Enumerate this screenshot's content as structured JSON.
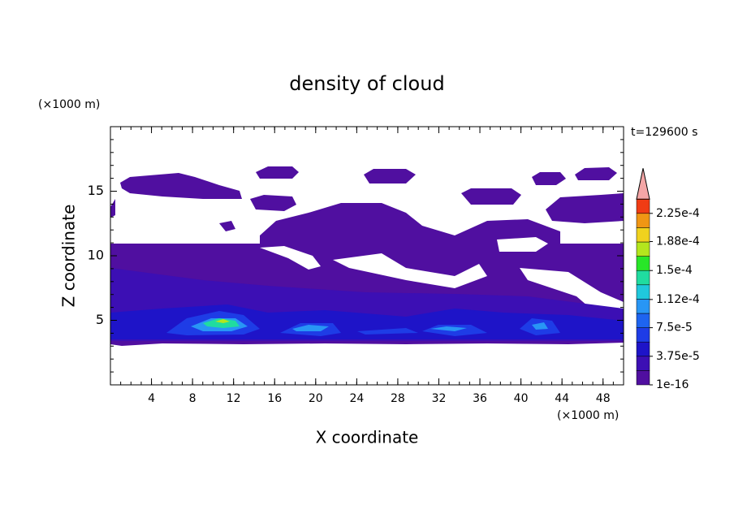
{
  "chart_data": {
    "type": "contour",
    "title": "density of cloud",
    "x_label": "X coordinate",
    "y_label": "Z coordinate",
    "x_unit": "(×1000 m)",
    "y_unit": "(×1000 m)",
    "time_label": "t=129600 s",
    "xlim": [
      0,
      50
    ],
    "ylim": [
      0,
      20
    ],
    "xticks": [
      4,
      8,
      12,
      16,
      20,
      24,
      28,
      32,
      36,
      40,
      44,
      48
    ],
    "yticks": [
      5,
      10,
      15
    ],
    "colorbar": {
      "levels": [
        1e-16,
        1.875e-05,
        3.75e-05,
        5.625e-05,
        7.5e-05,
        9.375e-05,
        0.0001125,
        0.00013125,
        0.00015,
        0.00016875,
        0.0001875,
        0.00020625,
        0.000225
      ],
      "colors": [
        "#500fa0",
        "#3c0fb4",
        "#1e14c8",
        "#1e3ce6",
        "#1e64f0",
        "#2896f5",
        "#20c8dc",
        "#20dca0",
        "#28e628",
        "#b4e61e",
        "#f0d21e",
        "#f09614",
        "#f03c14"
      ],
      "extend_color": "#f4a6a6",
      "ticks": [
        {
          "value": 1e-16,
          "label": "1e-16"
        },
        {
          "value": 3.75e-05,
          "label": "3.75e-5"
        },
        {
          "value": 7.5e-05,
          "label": "7.5e-5"
        },
        {
          "value": 0.000112,
          "label": "1.12e-4"
        },
        {
          "value": 0.00015,
          "label": "1.5e-4"
        },
        {
          "value": 0.000188,
          "label": "1.88e-4"
        },
        {
          "value": 0.000225,
          "label": "2.25e-4"
        }
      ]
    }
  }
}
